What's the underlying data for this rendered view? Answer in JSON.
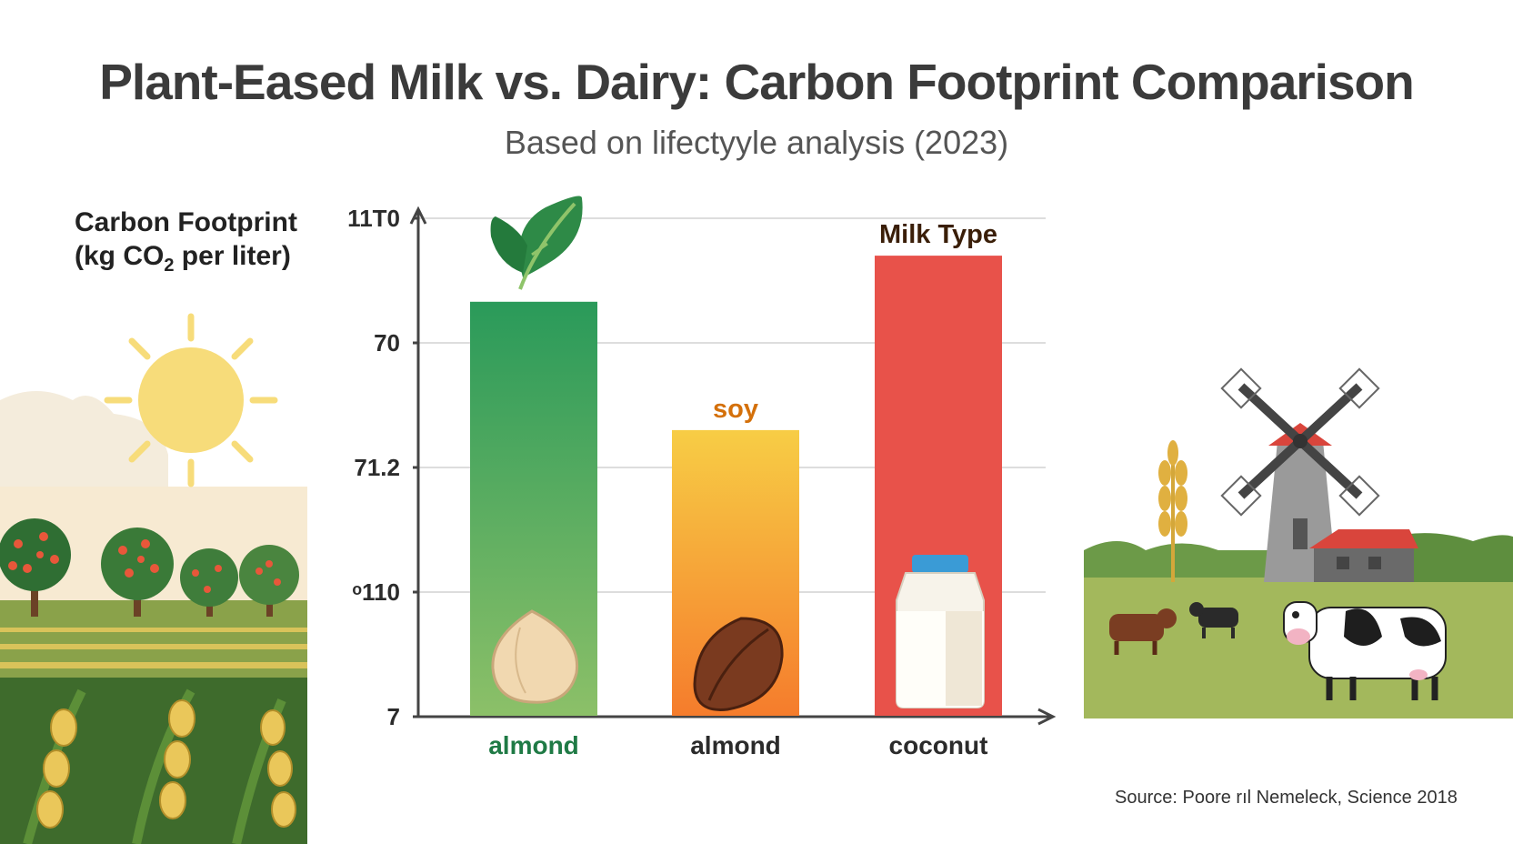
{
  "title": "Plant-Eased Milk vs. Dairy: Carbon Footprint Comparison",
  "subtitle": "Based on lifectyyle analysis (2023)",
  "source": "Source: Poore rıl Nemeleck, Science 2018",
  "colors": {
    "bar1_top": "#2a9a5a",
    "bar1_bottom": "#8cc068",
    "bar2_top": "#f7cd45",
    "bar2_bottom": "#f57c2c",
    "bar3": "#e8524a",
    "axis": "#444444",
    "grid": "#dddddd"
  },
  "chart_data": {
    "type": "bar",
    "ylabel_line1": "Carbon Footprint",
    "ylabel_line2_prefix": "(kg CO",
    "ylabel_line2_sub": "2",
    "ylabel_line2_suffix": " per liter)",
    "y_tick_labels": [
      "7",
      "ᵒ110",
      "71.2",
      "70",
      "11T0"
    ],
    "y_tick_values": [
      0,
      1,
      2,
      3,
      4
    ],
    "ylim": [
      0,
      4
    ],
    "categories": [
      "almond",
      "almond",
      "coconut"
    ],
    "values": [
      3.33,
      2.3,
      3.7
    ],
    "category_colors": [
      "#1f7a45",
      "#2b2b2b",
      "#2b2b2b"
    ],
    "annotations": [
      {
        "text": "soy",
        "bar": 1,
        "color": "#d4700a"
      },
      {
        "text": "Milk Type",
        "bar": 2,
        "color": "#3a1e08"
      }
    ],
    "icons": [
      "leaf-icon",
      "almond-icon",
      "cocoa-bean-icon",
      "milk-bottle-icon"
    ]
  },
  "scenes": [
    "orchard-field-illustration",
    "farm-windmill-cows-illustration"
  ]
}
